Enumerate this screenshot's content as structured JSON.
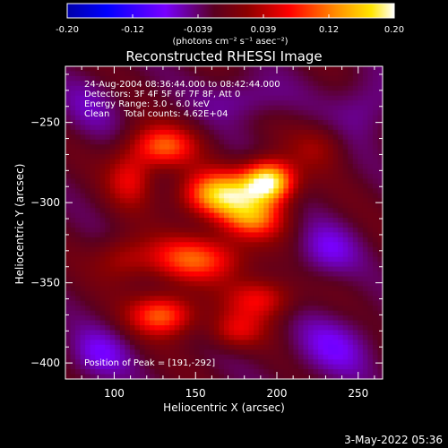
{
  "chart_data": {
    "type": "heatmap",
    "title": "Reconstructed RHESSI Image",
    "colorbar": {
      "min": -0.2,
      "max": 0.2,
      "ticks": [
        "-0.20",
        "-0.12",
        "-0.039",
        "0.039",
        "0.12",
        "0.20"
      ],
      "unit_label": "(photons cm⁻² s⁻¹ asec⁻²)"
    },
    "info_lines": [
      "24-Aug-2004 08:36:44.000 to 08:42:44.000",
      "Detectors: 3F 4F 5F 6F 7F 8F, Att 0",
      "Energy Range: 3.0 - 6.0 keV",
      "Clean     Total counts: 4.62E+04"
    ],
    "peak_text": "Position of Peak = [191,-292]",
    "peak": {
      "x": 191,
      "y": -292
    },
    "xlabel": "Heliocentric X (arcsec)",
    "ylabel": "Heliocentric Y (arcsec)",
    "xlim": [
      70,
      265
    ],
    "ylim": [
      -410,
      -215
    ],
    "x_ticks": [
      100,
      150,
      200,
      250
    ],
    "y_ticks": [
      -250,
      -300,
      -350,
      -400
    ],
    "grid_n": 64,
    "blobs": [
      {
        "x": 195,
        "y": -287,
        "sx": 11,
        "sy": 9,
        "a": 0.22
      },
      {
        "x": 165,
        "y": -295,
        "sx": 16,
        "sy": 10,
        "a": 0.18
      },
      {
        "x": 130,
        "y": -265,
        "sx": 14,
        "sy": 9,
        "a": 0.12
      },
      {
        "x": 110,
        "y": -285,
        "sx": 10,
        "sy": 12,
        "a": 0.08
      },
      {
        "x": 185,
        "y": -310,
        "sx": 14,
        "sy": 9,
        "a": 0.12
      },
      {
        "x": 150,
        "y": -335,
        "sx": 22,
        "sy": 10,
        "a": 0.12
      },
      {
        "x": 130,
        "y": -370,
        "sx": 14,
        "sy": 9,
        "a": 0.13
      },
      {
        "x": 190,
        "y": -360,
        "sx": 14,
        "sy": 9,
        "a": 0.09
      },
      {
        "x": 175,
        "y": -380,
        "sx": 12,
        "sy": 8,
        "a": 0.07
      },
      {
        "x": 105,
        "y": -335,
        "sx": 12,
        "sy": 10,
        "a": 0.05
      },
      {
        "x": 225,
        "y": -265,
        "sx": 12,
        "sy": 10,
        "a": 0.04
      },
      {
        "x": 230,
        "y": -330,
        "sx": 14,
        "sy": 12,
        "a": -0.05
      },
      {
        "x": 235,
        "y": -390,
        "sx": 18,
        "sy": 14,
        "a": -0.05
      },
      {
        "x": 90,
        "y": -395,
        "sx": 14,
        "sy": 12,
        "a": -0.05
      },
      {
        "x": 180,
        "y": -235,
        "sx": 18,
        "sy": 10,
        "a": -0.04
      },
      {
        "x": 85,
        "y": -240,
        "sx": 14,
        "sy": 14,
        "a": -0.03
      },
      {
        "x": 255,
        "y": -240,
        "sx": 14,
        "sy": 14,
        "a": -0.04
      }
    ]
  },
  "footer": {
    "timestamp": "3-May-2022 05:36"
  }
}
